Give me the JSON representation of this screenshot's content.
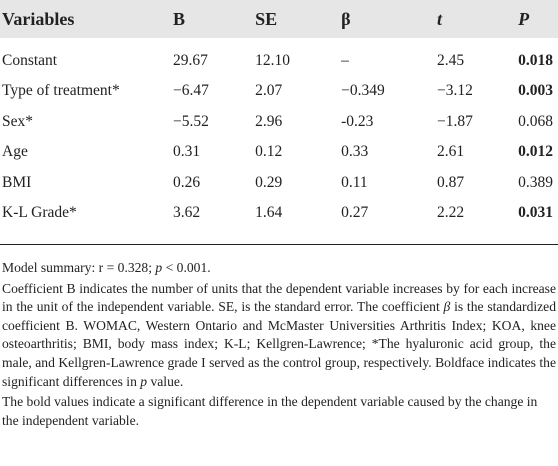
{
  "table": {
    "headers": [
      "Variables",
      "B",
      "SE",
      "β",
      "t",
      "P"
    ],
    "rows": [
      {
        "variable": "Constant",
        "B": "29.67",
        "SE": "12.10",
        "beta": "–",
        "t": "2.45",
        "P": "0.018",
        "p_bold": true
      },
      {
        "variable": "Type of treatment*",
        "B": "−6.47",
        "SE": "2.07",
        "beta": "−0.349",
        "t": "−3.12",
        "P": "0.003",
        "p_bold": true
      },
      {
        "variable": "Sex*",
        "B": "−5.52",
        "SE": "2.96",
        "beta": "-0.23",
        "t": "−1.87",
        "P": "0.068",
        "p_bold": false
      },
      {
        "variable": "Age",
        "B": "0.31",
        "SE": "0.12",
        "beta": "0.33",
        "t": "2.61",
        "P": "0.012",
        "p_bold": true
      },
      {
        "variable": "BMI",
        "B": "0.26",
        "SE": "0.29",
        "beta": "0.11",
        "t": "0.87",
        "P": "0.389",
        "p_bold": false
      },
      {
        "variable": "K-L Grade*",
        "B": "3.62",
        "SE": "1.64",
        "beta": "0.27",
        "t": "2.22",
        "P": "0.031",
        "p_bold": true
      }
    ]
  },
  "footnotes": {
    "summary_pre": "Model summary: r = 0.328; ",
    "summary_p": "p",
    "summary_post": " < 0.001.",
    "coef_1": "Coefficient B indicates the number of units that the dependent variable increases by for each increase in the unit of the independent variable. SE, is the standard error. The coefficient ",
    "coef_beta": "β",
    "coef_2": " is the standardized coefficient B. WOMAC, Western Ontario and McMaster Universities Arthritis Index; KOA, knee osteoarthritis; BMI, body mass index; K-L; Kellgren-Lawrence; *The hyaluronic acid group, the male, and Kellgren-Lawrence grade I served as the control group, respectively. Boldface indicates the significant differences in ",
    "coef_p": "p",
    "coef_3": " value.",
    "bold_note": "The bold values indicate a significant difference in the dependent variable caused by the change in the independent variable."
  }
}
